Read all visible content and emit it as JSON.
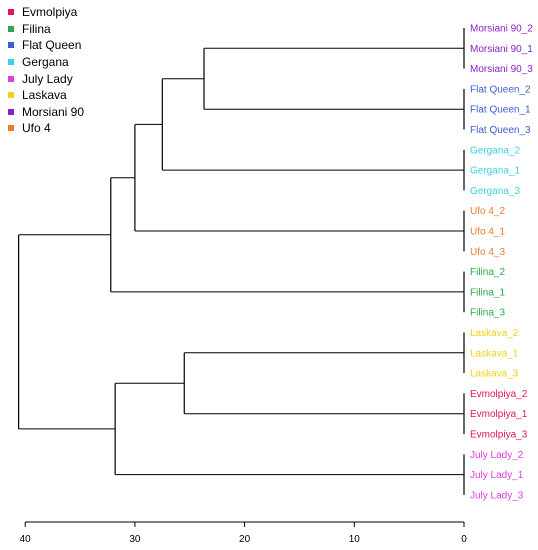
{
  "chart_data": {
    "type": "dendrogram",
    "x_axis": {
      "reversed": true,
      "range": [
        41,
        0
      ],
      "ticks": [
        40,
        30,
        20,
        10,
        0
      ],
      "tick_labels": [
        "40",
        "30",
        "20",
        "10",
        "0"
      ]
    },
    "legend": {
      "placement": "top-left",
      "entries": [
        {
          "name": "Evmolpiya",
          "color": "#e0174e"
        },
        {
          "name": "Filina",
          "color": "#2ca84a"
        },
        {
          "name": "Flat Queen",
          "color": "#3a5fd0"
        },
        {
          "name": "Gergana",
          "color": "#3fcfe8"
        },
        {
          "name": "July Lady",
          "color": "#e03de0"
        },
        {
          "name": "Laskava",
          "color": "#f0d21a"
        },
        {
          "name": "Morsiani 90",
          "color": "#8a1fc4"
        },
        {
          "name": "Ufo 4",
          "color": "#f07a2a"
        }
      ]
    },
    "leaves": [
      {
        "label": "Morsiani 90_2",
        "group": "Morsiani 90"
      },
      {
        "label": "Morsiani 90_1",
        "group": "Morsiani 90"
      },
      {
        "label": "Morsiani 90_3",
        "group": "Morsiani 90"
      },
      {
        "label": "Flat Queen_2",
        "group": "Flat Queen"
      },
      {
        "label": "Flat Queen_1",
        "group": "Flat Queen"
      },
      {
        "label": "Flat Queen_3",
        "group": "Flat Queen"
      },
      {
        "label": "Gergana_2",
        "group": "Gergana"
      },
      {
        "label": "Gergana_1",
        "group": "Gergana"
      },
      {
        "label": "Gergana_3",
        "group": "Gergana"
      },
      {
        "label": "Ufo 4_2",
        "group": "Ufo 4"
      },
      {
        "label": "Ufo 4_1",
        "group": "Ufo 4"
      },
      {
        "label": "Ufo 4_3",
        "group": "Ufo 4"
      },
      {
        "label": "Filina_2",
        "group": "Filina"
      },
      {
        "label": "Filina_1",
        "group": "Filina"
      },
      {
        "label": "Filina_3",
        "group": "Filina"
      },
      {
        "label": "Laskava_2",
        "group": "Laskava"
      },
      {
        "label": "Laskava_1",
        "group": "Laskava"
      },
      {
        "label": "Laskava_3",
        "group": "Laskava"
      },
      {
        "label": "Evmolpiya_2",
        "group": "Evmolpiya"
      },
      {
        "label": "Evmolpiya_1",
        "group": "Evmolpiya"
      },
      {
        "label": "Evmolpiya_3",
        "group": "Evmolpiya"
      },
      {
        "label": "July Lady_2",
        "group": "July Lady"
      },
      {
        "label": "July Lady_1",
        "group": "July Lady"
      },
      {
        "label": "July Lady_3",
        "group": "July Lady"
      }
    ],
    "merges": [
      {
        "id": "n1",
        "children": [
          "L0",
          "L1",
          "L2"
        ],
        "height": 0
      },
      {
        "id": "n2",
        "children": [
          "L3",
          "L4",
          "L5"
        ],
        "height": 0
      },
      {
        "id": "n3",
        "children": [
          "L6",
          "L7",
          "L8"
        ],
        "height": 0
      },
      {
        "id": "n4",
        "children": [
          "L9",
          "L10",
          "L11"
        ],
        "height": 0
      },
      {
        "id": "n5",
        "children": [
          "L12",
          "L13",
          "L14"
        ],
        "height": 0
      },
      {
        "id": "n6",
        "children": [
          "L15",
          "L16",
          "L17"
        ],
        "height": 0
      },
      {
        "id": "n7",
        "children": [
          "L18",
          "L19",
          "L20"
        ],
        "height": 0
      },
      {
        "id": "n8",
        "children": [
          "L21",
          "L22",
          "L23"
        ],
        "height": 0
      },
      {
        "id": "n9",
        "children": [
          "n1",
          "n2"
        ],
        "height": 23.7
      },
      {
        "id": "n10",
        "children": [
          "n9",
          "n3"
        ],
        "height": 27.5
      },
      {
        "id": "n11",
        "children": [
          "n10",
          "n4"
        ],
        "height": 30.0
      },
      {
        "id": "n12",
        "children": [
          "n11",
          "n5"
        ],
        "height": 32.2
      },
      {
        "id": "n13",
        "children": [
          "n6",
          "n7"
        ],
        "height": 25.5
      },
      {
        "id": "n14",
        "children": [
          "n13",
          "n8"
        ],
        "height": 31.8
      },
      {
        "id": "n15",
        "children": [
          "n12",
          "n14"
        ],
        "height": 40.6
      }
    ]
  }
}
